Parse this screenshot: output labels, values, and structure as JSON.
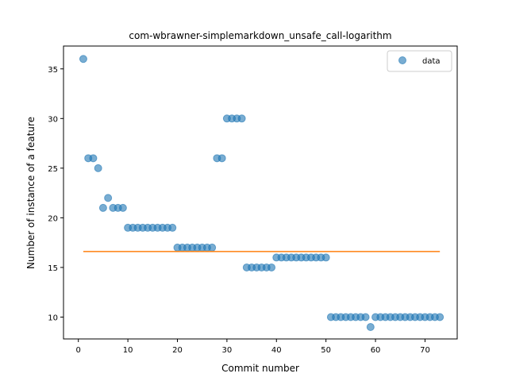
{
  "chart_data": {
    "type": "scatter",
    "title": "com-wbrawner-simplemarkdown_unsafe_call-logarithm",
    "xlabel": "Commit number",
    "ylabel": "Number of instance of a feature",
    "xlim": [
      -3,
      76.5
    ],
    "ylim": [
      7.8,
      37.3
    ],
    "xticks": [
      0,
      10,
      20,
      30,
      40,
      50,
      60,
      70
    ],
    "yticks": [
      10,
      15,
      20,
      25,
      30,
      35
    ],
    "legend": {
      "position": "top-right",
      "entries": [
        "data"
      ]
    },
    "grid": false,
    "colors": {
      "points": "#1f77b4",
      "fit_line": "#ff7f0e"
    },
    "series": [
      {
        "name": "data",
        "x": [
          1,
          2,
          3,
          4,
          5,
          6,
          7,
          8,
          9,
          10,
          11,
          12,
          13,
          14,
          15,
          16,
          17,
          18,
          19,
          20,
          21,
          22,
          23,
          24,
          25,
          26,
          27,
          28,
          29,
          30,
          31,
          32,
          33,
          34,
          35,
          36,
          37,
          38,
          39,
          40,
          41,
          42,
          43,
          44,
          45,
          46,
          47,
          48,
          49,
          50,
          51,
          52,
          53,
          54,
          55,
          56,
          57,
          58,
          59,
          60,
          61,
          62,
          63,
          64,
          65,
          66,
          67,
          68,
          69,
          70,
          71,
          72,
          73
        ],
        "y": [
          36,
          26,
          26,
          25,
          21,
          22,
          21,
          21,
          21,
          19,
          19,
          19,
          19,
          19,
          19,
          19,
          19,
          19,
          19,
          17,
          17,
          17,
          17,
          17,
          17,
          17,
          17,
          26,
          26,
          30,
          30,
          30,
          30,
          15,
          15,
          15,
          15,
          15,
          15,
          16,
          16,
          16,
          16,
          16,
          16,
          16,
          16,
          16,
          16,
          16,
          10,
          10,
          10,
          10,
          10,
          10,
          10,
          10,
          9,
          10,
          10,
          10,
          10,
          10,
          10,
          10,
          10,
          10,
          10,
          10,
          10,
          10,
          10
        ]
      },
      {
        "name": "",
        "type": "line",
        "x": [
          1,
          73
        ],
        "y": [
          16.6,
          16.6
        ]
      }
    ]
  }
}
